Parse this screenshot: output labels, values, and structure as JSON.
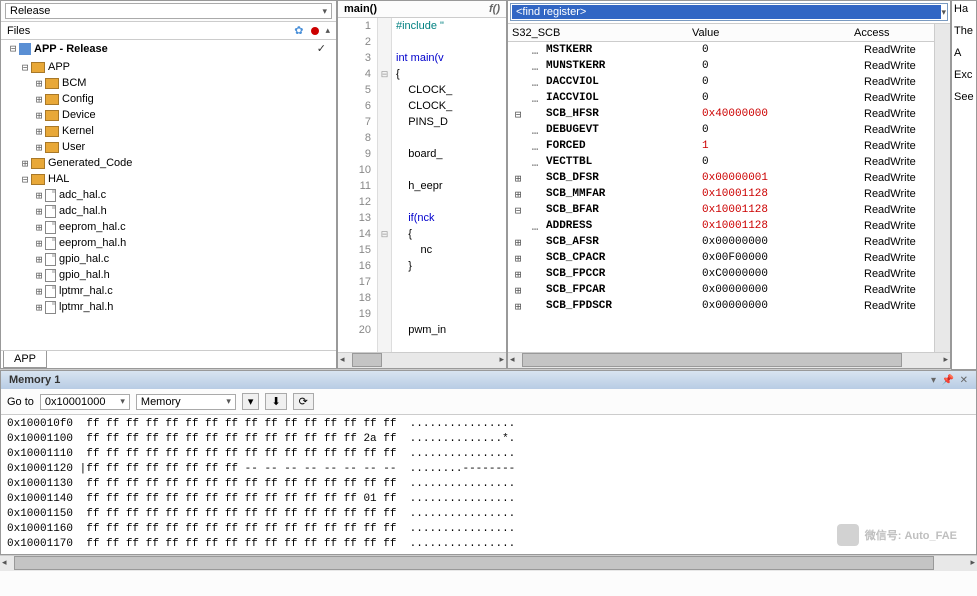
{
  "release_dropdown": "Release",
  "files_label": "Files",
  "tree": {
    "root": "APP - Release",
    "nodes": [
      {
        "indent": 1,
        "exp": "⊟",
        "type": "folder",
        "label": "APP"
      },
      {
        "indent": 2,
        "exp": "⊞",
        "type": "folder",
        "label": "BCM"
      },
      {
        "indent": 2,
        "exp": "⊞",
        "type": "folder",
        "label": "Config"
      },
      {
        "indent": 2,
        "exp": "⊞",
        "type": "folder",
        "label": "Device"
      },
      {
        "indent": 2,
        "exp": "⊞",
        "type": "folder",
        "label": "Kernel"
      },
      {
        "indent": 2,
        "exp": "⊞",
        "type": "folder",
        "label": "User"
      },
      {
        "indent": 1,
        "exp": "⊞",
        "type": "folder",
        "label": "Generated_Code"
      },
      {
        "indent": 1,
        "exp": "⊟",
        "type": "folder",
        "label": "HAL"
      },
      {
        "indent": 2,
        "exp": "⊞",
        "type": "file",
        "label": "adc_hal.c"
      },
      {
        "indent": 2,
        "exp": "⊞",
        "type": "file",
        "label": "adc_hal.h"
      },
      {
        "indent": 2,
        "exp": "⊞",
        "type": "file",
        "label": "eeprom_hal.c"
      },
      {
        "indent": 2,
        "exp": "⊞",
        "type": "file",
        "label": "eeprom_hal.h"
      },
      {
        "indent": 2,
        "exp": "⊞",
        "type": "file",
        "label": "gpio_hal.c"
      },
      {
        "indent": 2,
        "exp": "⊞",
        "type": "file",
        "label": "gpio_hal.h"
      },
      {
        "indent": 2,
        "exp": "⊞",
        "type": "file",
        "label": "lptmr_hal.c"
      },
      {
        "indent": 2,
        "exp": "⊞",
        "type": "file",
        "label": "lptmr_hal.h"
      }
    ]
  },
  "app_tab": "APP",
  "code": {
    "title": "main()",
    "fn": "f()",
    "lines": [
      {
        "n": 1,
        "t": "#include \"",
        "cls": "pp",
        "fold": ""
      },
      {
        "n": 2,
        "t": "",
        "fold": ""
      },
      {
        "n": 3,
        "t": "int main(v",
        "cls": "kw",
        "fold": ""
      },
      {
        "n": 4,
        "t": "{",
        "fold": "⊟"
      },
      {
        "n": 5,
        "t": "    CLOCK_",
        "fold": ""
      },
      {
        "n": 6,
        "t": "    CLOCK_",
        "fold": ""
      },
      {
        "n": 7,
        "t": "    PINS_D",
        "fold": ""
      },
      {
        "n": 8,
        "t": "",
        "fold": ""
      },
      {
        "n": 9,
        "t": "    board_",
        "fold": ""
      },
      {
        "n": 10,
        "t": "",
        "fold": ""
      },
      {
        "n": 11,
        "t": "    h_eepr",
        "fold": ""
      },
      {
        "n": 12,
        "t": "",
        "fold": ""
      },
      {
        "n": 13,
        "t": "    if(nck",
        "cls": "kw",
        "fold": ""
      },
      {
        "n": 14,
        "t": "    {",
        "fold": "⊟"
      },
      {
        "n": 15,
        "t": "        nc",
        "fold": ""
      },
      {
        "n": 16,
        "t": "    }",
        "fold": ""
      },
      {
        "n": 17,
        "t": "",
        "fold": ""
      },
      {
        "n": 18,
        "t": "",
        "fold": ""
      },
      {
        "n": 19,
        "t": "",
        "fold": ""
      },
      {
        "n": 20,
        "t": "    pwm_in",
        "fold": ""
      }
    ]
  },
  "find_placeholder": "<find register>",
  "reg_headers": {
    "group": "S32_SCB",
    "value": "Value",
    "access": "Access"
  },
  "registers": [
    {
      "exp": "",
      "dots": "…",
      "name": "MSTKERR",
      "val": "0",
      "acc": "ReadWrite"
    },
    {
      "exp": "",
      "dots": "…",
      "name": "MUNSTKERR",
      "val": "0",
      "acc": "ReadWrite"
    },
    {
      "exp": "",
      "dots": "…",
      "name": "DACCVIOL",
      "val": "0",
      "acc": "ReadWrite"
    },
    {
      "exp": "",
      "dots": "…",
      "name": "IACCVIOL",
      "val": "0",
      "acc": "ReadWrite"
    },
    {
      "exp": "⊟",
      "dots": "",
      "name": "SCB_HFSR",
      "val": "0x40000000",
      "acc": "ReadWrite",
      "red": true
    },
    {
      "exp": "",
      "dots": "…",
      "name": "DEBUGEVT",
      "val": "0",
      "acc": "ReadWrite"
    },
    {
      "exp": "",
      "dots": "…",
      "name": "FORCED",
      "val": "1",
      "acc": "ReadWrite",
      "red": true
    },
    {
      "exp": "",
      "dots": "…",
      "name": "VECTTBL",
      "val": "0",
      "acc": "ReadWrite"
    },
    {
      "exp": "⊞",
      "dots": "",
      "name": "SCB_DFSR",
      "val": "0x00000001",
      "acc": "ReadWrite",
      "red": true
    },
    {
      "exp": "⊞",
      "dots": "",
      "name": "SCB_MMFAR",
      "val": "0x10001128",
      "acc": "ReadWrite",
      "red": true
    },
    {
      "exp": "⊟",
      "dots": "",
      "name": "SCB_BFAR",
      "val": "0x10001128",
      "acc": "ReadWrite",
      "red": true
    },
    {
      "exp": "",
      "dots": "…",
      "name": "ADDRESS",
      "val": "0x10001128",
      "acc": "ReadWrite",
      "red": true
    },
    {
      "exp": "⊞",
      "dots": "",
      "name": "SCB_AFSR",
      "val": "0x00000000",
      "acc": "ReadWrite"
    },
    {
      "exp": "⊞",
      "dots": "",
      "name": "SCB_CPACR",
      "val": "0x00F00000",
      "acc": "ReadWrite"
    },
    {
      "exp": "⊞",
      "dots": "",
      "name": "SCB_FPCCR",
      "val": "0xC0000000",
      "acc": "ReadWrite"
    },
    {
      "exp": "⊞",
      "dots": "",
      "name": "SCB_FPCAR",
      "val": "0x00000000",
      "acc": "ReadWrite"
    },
    {
      "exp": "⊞",
      "dots": "",
      "name": "SCB_FPDSCR",
      "val": "0x00000000",
      "acc": "ReadWrite"
    }
  ],
  "far_right": [
    "Ha",
    "The",
    "  A",
    "",
    "Exc",
    "",
    "See"
  ],
  "memory": {
    "title": "Memory 1",
    "goto_label": "Go to",
    "goto_value": "0x10001000",
    "view_label": "Memory",
    "rows": [
      "0x100010f0  ff ff ff ff ff ff ff ff ff ff ff ff ff ff ff ff  ................",
      "0x10001100  ff ff ff ff ff ff ff ff ff ff ff ff ff ff 2a ff  ..............*.",
      "0x10001110  ff ff ff ff ff ff ff ff ff ff ff ff ff ff ff ff  ................",
      "0x10001120 |ff ff ff ff ff ff ff ff -- -- -- -- -- -- -- --  ........--------",
      "0x10001130  ff ff ff ff ff ff ff ff ff ff ff ff ff ff ff ff  ................",
      "0x10001140  ff ff ff ff ff ff ff ff ff ff ff ff ff ff 01 ff  ................",
      "0x10001150  ff ff ff ff ff ff ff ff ff ff ff ff ff ff ff ff  ................",
      "0x10001160  ff ff ff ff ff ff ff ff ff ff ff ff ff ff ff ff  ................",
      "0x10001170  ff ff ff ff ff ff ff ff ff ff ff ff ff ff ff ff  ................"
    ]
  },
  "watermark": "微信号: Auto_FAE"
}
